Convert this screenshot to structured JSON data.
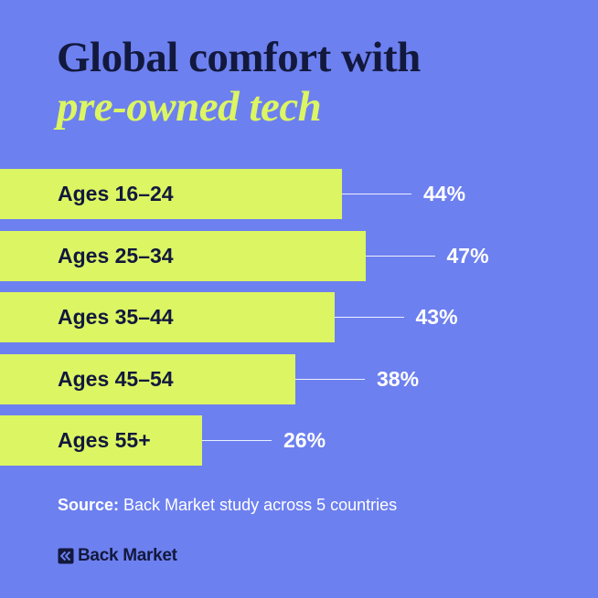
{
  "title": {
    "line1": "Global comfort with",
    "line2": "pre-owned tech"
  },
  "chart_data": {
    "type": "bar",
    "orientation": "horizontal",
    "title": "Global comfort with pre-owned tech",
    "categories": [
      "Ages 16–24",
      "Ages 25–34",
      "Ages 35–44",
      "Ages 45–54",
      "Ages 55+"
    ],
    "values": [
      44,
      47,
      43,
      38,
      26
    ],
    "value_labels": [
      "44%",
      "47%",
      "43%",
      "38%",
      "26%"
    ],
    "unit": "%",
    "xlim": [
      0,
      100
    ],
    "grid": false,
    "legend": "none"
  },
  "source": {
    "prefix": "Source:",
    "text": " Back Market study across 5 countries"
  },
  "brand": {
    "name": "Back Market",
    "icon": "back-market-logo-icon"
  },
  "colors": {
    "background": "#6d80f0",
    "bar": "#dcf562",
    "dark": "#12193d",
    "text_light": "#ffffff",
    "leader": "#eef0ff"
  }
}
